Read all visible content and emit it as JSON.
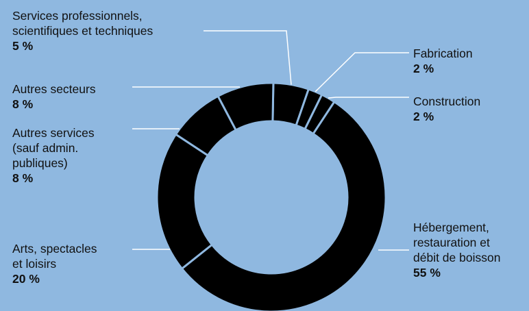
{
  "chart_data": {
    "type": "pie",
    "donut": true,
    "colors": {
      "background": "#8fb8e0",
      "slice": "#000000",
      "separator": "#8fb8e0",
      "leader": "#ffffff"
    },
    "slices": [
      {
        "label": "Hébergement,\nrestauration et\ndébit de boisson",
        "value": 55,
        "value_label": "55 %"
      },
      {
        "label": "Arts, spectacles\net loisirs",
        "value": 20,
        "value_label": "20 %"
      },
      {
        "label": "Autres services\n(sauf admin.\npubliques)",
        "value": 8,
        "value_label": "8 %"
      },
      {
        "label": "Autres secteurs",
        "value": 8,
        "value_label": "8 %"
      },
      {
        "label": "Services professionnels,\nscientifiques et techniques",
        "value": 5,
        "value_label": "5 %"
      },
      {
        "label": "Fabrication",
        "value": 2,
        "value_label": "2 %"
      },
      {
        "label": "Construction",
        "value": 2,
        "value_label": "2 %"
      }
    ]
  }
}
